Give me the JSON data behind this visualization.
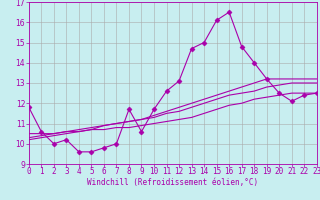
{
  "xlabel": "Windchill (Refroidissement éolien,°C)",
  "bg_color": "#c8eef0",
  "line_color": "#aa00aa",
  "xlim": [
    0,
    23
  ],
  "ylim": [
    9,
    17
  ],
  "yticks": [
    9,
    10,
    11,
    12,
    13,
    14,
    15,
    16,
    17
  ],
  "xticks": [
    0,
    1,
    2,
    3,
    4,
    5,
    6,
    7,
    8,
    9,
    10,
    11,
    12,
    13,
    14,
    15,
    16,
    17,
    18,
    19,
    20,
    21,
    22,
    23
  ],
  "series1_x": [
    0,
    1,
    2,
    3,
    4,
    5,
    6,
    7,
    8,
    9,
    10,
    11,
    12,
    13,
    14,
    15,
    16,
    17,
    18,
    19,
    20,
    21,
    22,
    23
  ],
  "series1_y": [
    11.8,
    10.6,
    10.0,
    10.2,
    9.6,
    9.6,
    9.8,
    10.0,
    11.7,
    10.6,
    11.7,
    12.6,
    13.1,
    14.7,
    15.0,
    16.1,
    16.5,
    14.8,
    14.0,
    13.2,
    12.5,
    12.1,
    12.4,
    12.5
  ],
  "series2_x": [
    0,
    1,
    2,
    3,
    4,
    5,
    6,
    7,
    8,
    9,
    10,
    11,
    12,
    13,
    14,
    15,
    16,
    17,
    18,
    19,
    20,
    21,
    22,
    23
  ],
  "series2_y": [
    10.5,
    10.5,
    10.5,
    10.6,
    10.6,
    10.7,
    10.7,
    10.8,
    10.8,
    10.9,
    11.0,
    11.1,
    11.2,
    11.3,
    11.5,
    11.7,
    11.9,
    12.0,
    12.2,
    12.3,
    12.4,
    12.5,
    12.5,
    12.5
  ],
  "series3_x": [
    0,
    1,
    2,
    3,
    4,
    5,
    6,
    7,
    8,
    9,
    10,
    11,
    12,
    13,
    14,
    15,
    16,
    17,
    18,
    19,
    20,
    21,
    22,
    23
  ],
  "series3_y": [
    10.3,
    10.4,
    10.5,
    10.6,
    10.7,
    10.8,
    10.9,
    11.0,
    11.1,
    11.2,
    11.3,
    11.5,
    11.6,
    11.8,
    12.0,
    12.2,
    12.4,
    12.5,
    12.6,
    12.8,
    12.9,
    13.0,
    13.0,
    13.0
  ],
  "series4_x": [
    0,
    1,
    2,
    3,
    4,
    5,
    6,
    7,
    8,
    9,
    10,
    11,
    12,
    13,
    14,
    15,
    16,
    17,
    18,
    19,
    20,
    21,
    22,
    23
  ],
  "series4_y": [
    10.2,
    10.3,
    10.4,
    10.5,
    10.6,
    10.7,
    10.9,
    11.0,
    11.1,
    11.2,
    11.4,
    11.6,
    11.8,
    12.0,
    12.2,
    12.4,
    12.6,
    12.8,
    13.0,
    13.2,
    13.2,
    13.2,
    13.2,
    13.2
  ],
  "tick_fontsize": 5.5,
  "xlabel_fontsize": 5.5,
  "grid_color": "#aaaaaa",
  "grid_lw": 0.4,
  "line_lw": 0.8,
  "marker_size": 2.5
}
